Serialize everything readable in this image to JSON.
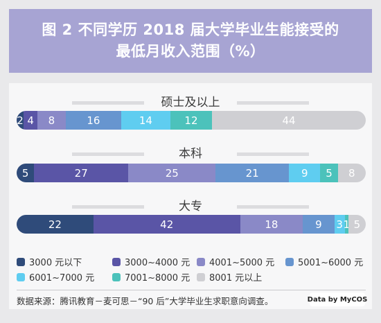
{
  "title": {
    "line1": "图 2 不同学历 2018 届大学毕业生能接受的",
    "line2": "最低月收入范围（%）"
  },
  "colors": [
    "#2f4b7a",
    "#5a55a6",
    "#8a89c7",
    "#6795cf",
    "#5fcdf0",
    "#4cc2bb",
    "#cfcfd3"
  ],
  "chart_data": {
    "type": "bar",
    "stacked": true,
    "orientation": "horizontal",
    "categories": [
      "硕士及以上",
      "本科",
      "大专"
    ],
    "series": [
      {
        "name": "3000 元以下",
        "values": [
          2,
          5,
          22
        ]
      },
      {
        "name": "3000~4000 元",
        "values": [
          4,
          27,
          42
        ]
      },
      {
        "name": "4001~5000 元",
        "values": [
          8,
          25,
          18
        ]
      },
      {
        "name": "5001~6000 元",
        "values": [
          16,
          21,
          9
        ]
      },
      {
        "name": "6001~7000 元",
        "values": [
          14,
          9,
          3
        ]
      },
      {
        "name": "7001~8000 元",
        "values": [
          12,
          5,
          1
        ]
      },
      {
        "name": "8001 元以上",
        "values": [
          44,
          8,
          5
        ]
      }
    ]
  },
  "source": "数据来源：腾讯教育－麦可思－“90 后”大学毕业生求职意向调查。",
  "brand": "Data by MyCOS"
}
